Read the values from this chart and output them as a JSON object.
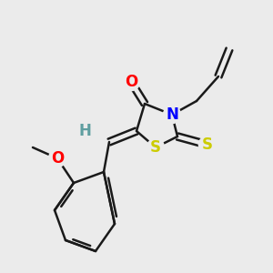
{
  "background_color": "#ebebeb",
  "atom_colors": {
    "O": "#ff0000",
    "N": "#0000ff",
    "S": "#cccc00",
    "H": "#5f9ea0",
    "C": "#1a1a1a"
  },
  "lw": 1.8,
  "dbo": 0.012,
  "figsize": [
    3.0,
    3.0
  ],
  "dpi": 100
}
